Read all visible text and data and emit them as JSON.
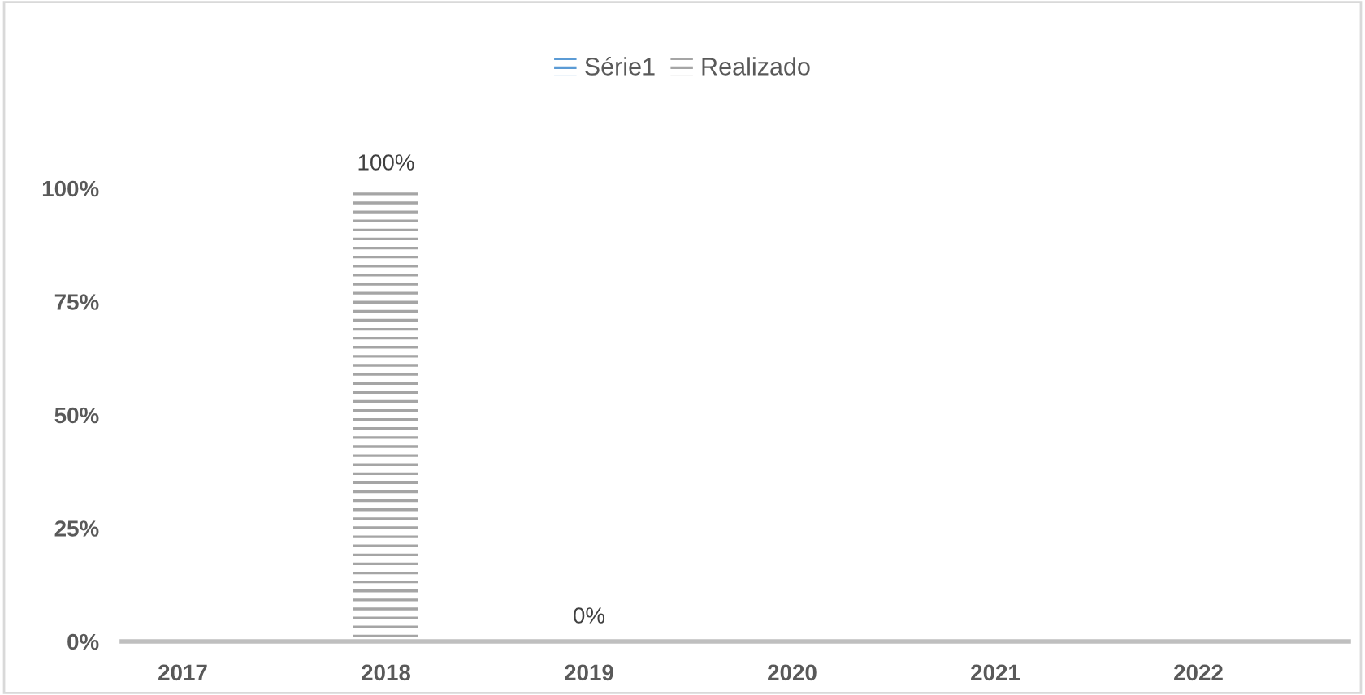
{
  "chart_data": {
    "type": "bar",
    "categories": [
      "2017",
      "2018",
      "2019",
      "2020",
      "2021",
      "2022"
    ],
    "series": [
      {
        "name": "Série1",
        "color": "#5b9bd5",
        "values": [
          null,
          null,
          null,
          null,
          null,
          null
        ]
      },
      {
        "name": "Realizado",
        "color": "#a5a5a5",
        "values": [
          null,
          100,
          0,
          null,
          null,
          null
        ],
        "value_labels": [
          null,
          "100%",
          "0%",
          null,
          null,
          null
        ]
      }
    ],
    "ylim": [
      0,
      100
    ],
    "yticks": [
      {
        "value": 0,
        "label": "0%"
      },
      {
        "value": 25,
        "label": "25%"
      },
      {
        "value": 50,
        "label": "50%"
      },
      {
        "value": 75,
        "label": "75%"
      },
      {
        "value": 100,
        "label": "100%"
      }
    ],
    "grid": false,
    "legend": "top"
  }
}
